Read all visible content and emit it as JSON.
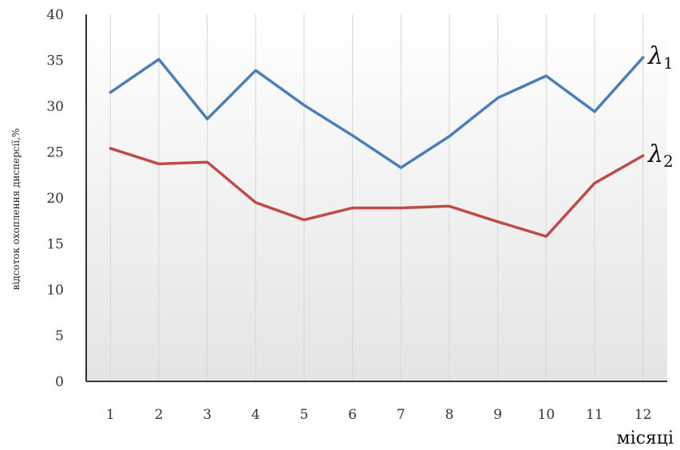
{
  "chart_data": {
    "type": "line",
    "categories": [
      "1",
      "2",
      "3",
      "4",
      "5",
      "6",
      "7",
      "8",
      "9",
      "10",
      "11",
      "12"
    ],
    "series": [
      {
        "name": "λ1",
        "label_main": "λ",
        "label_sub": "1",
        "color": "#4A7EBB",
        "values": [
          31.5,
          35.1,
          28.6,
          33.9,
          30.1,
          26.8,
          23.3,
          26.7,
          30.9,
          33.3,
          29.4,
          35.3
        ]
      },
      {
        "name": "λ2",
        "label_main": "λ",
        "label_sub": "2",
        "color": "#BE4B48",
        "values": [
          25.4,
          23.7,
          23.9,
          19.5,
          17.6,
          18.9,
          18.9,
          19.1,
          17.4,
          15.8,
          21.6,
          24.6
        ]
      }
    ],
    "y_ticks": [
      "0",
      "5",
      "10",
      "15",
      "20",
      "25",
      "30",
      "35",
      "40"
    ],
    "ylim": [
      0,
      40
    ],
    "xlabel": "місяці",
    "ylabel": "відсоток охоплення дисперсії,%",
    "grid": "vertical",
    "title": ""
  }
}
